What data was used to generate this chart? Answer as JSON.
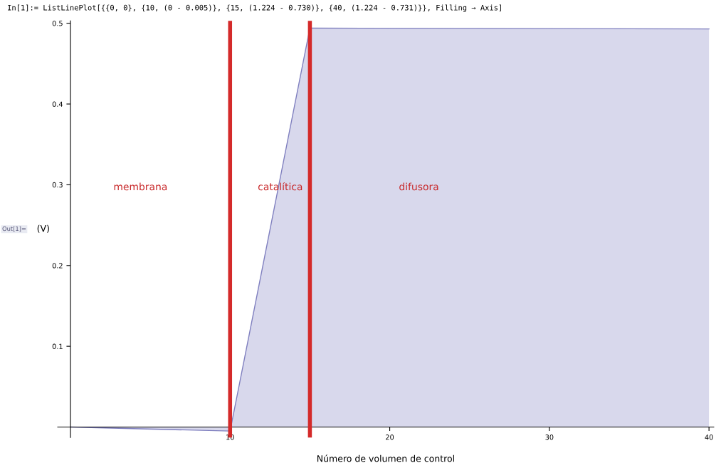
{
  "chart_data": {
    "type": "area",
    "title": "In[1]:= ListLinePlot[{{0, 0}, {10, (0 - 0.005)}, {15, (1.224 - 0.730)}, {40, (1.224 - 0.731)}}, Filling → Axis]",
    "xlabel": "Número de volumen de control",
    "ylabel": "(V)",
    "x": [
      0,
      10,
      15,
      40
    ],
    "series": [
      {
        "color": "#7f7fbf",
        "values": [
          0,
          -0.005,
          0.494,
          0.493
        ]
      }
    ],
    "xlim": [
      -0.8,
      40.3
    ],
    "ylim": [
      -0.013,
      0.503
    ],
    "xticks": [
      10,
      20,
      30,
      40
    ],
    "yticks": [
      0.1,
      0.2,
      0.3,
      0.4,
      0.5
    ],
    "ref_lines": [
      {
        "axis": "x",
        "value": 10,
        "color": "#d42a2a"
      },
      {
        "axis": "x",
        "value": 15,
        "color": "#d42a2a"
      }
    ],
    "annotations": [
      "Out[1]=",
      "membrana",
      "catalítica",
      "difusora"
    ],
    "grid": false,
    "legend": false
  }
}
